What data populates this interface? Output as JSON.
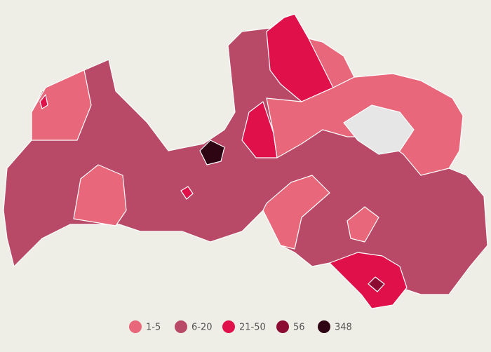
{
  "legend": [
    {
      "label": "1-5",
      "color": "#e8677a"
    },
    {
      "label": "6-20",
      "color": "#b84a67"
    },
    {
      "label": "21-50",
      "color": "#e0114a"
    },
    {
      "label": "56",
      "color": "#8c0b33"
    },
    {
      "label": "348",
      "color": "#2e0512"
    }
  ]
}
